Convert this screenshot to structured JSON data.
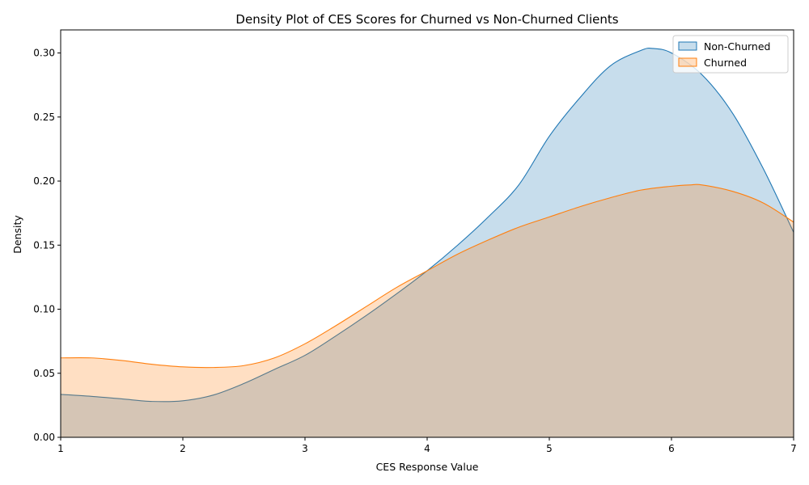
{
  "chart_data": {
    "type": "area",
    "title": "Density Plot of CES Scores for Churned vs Non-Churned Clients",
    "xlabel": "CES Response Value",
    "ylabel": "Density",
    "xlim": [
      1,
      7
    ],
    "ylim": [
      0,
      0.318
    ],
    "xticks": [
      1,
      2,
      3,
      4,
      5,
      6,
      7
    ],
    "xtick_labels": [
      "1",
      "2",
      "3",
      "4",
      "5",
      "6",
      "7"
    ],
    "yticks": [
      0,
      0.05,
      0.1,
      0.15,
      0.2,
      0.25,
      0.3
    ],
    "ytick_labels": [
      "0.00",
      "0.05",
      "0.10",
      "0.15",
      "0.20",
      "0.25",
      "0.30"
    ],
    "grid": false,
    "legend_position": "top-right",
    "series": [
      {
        "name": "Non-Churned",
        "line_color": "#1f77b4",
        "fill_color": "#1f77b4",
        "fill_opacity": 0.25,
        "x": [
          1.0,
          1.25,
          1.5,
          1.75,
          2.0,
          2.25,
          2.5,
          2.75,
          3.0,
          3.25,
          3.5,
          3.75,
          4.0,
          4.25,
          4.5,
          4.75,
          5.0,
          5.25,
          5.5,
          5.75,
          5.85,
          6.0,
          6.25,
          6.5,
          6.75,
          7.0
        ],
        "y": [
          0.0335,
          0.032,
          0.03,
          0.028,
          0.0285,
          0.033,
          0.042,
          0.053,
          0.064,
          0.079,
          0.095,
          0.112,
          0.13,
          0.15,
          0.172,
          0.197,
          0.235,
          0.265,
          0.29,
          0.302,
          0.3035,
          0.3,
          0.283,
          0.253,
          0.21,
          0.16
        ]
      },
      {
        "name": "Churned",
        "line_color": "#ff7f0e",
        "fill_color": "#ff7f0e",
        "fill_opacity": 0.25,
        "x": [
          1.0,
          1.25,
          1.5,
          1.75,
          2.0,
          2.25,
          2.5,
          2.75,
          3.0,
          3.25,
          3.5,
          3.75,
          4.0,
          4.25,
          4.5,
          4.75,
          5.0,
          5.25,
          5.5,
          5.75,
          6.0,
          6.15,
          6.25,
          6.5,
          6.75,
          7.0
        ],
        "y": [
          0.062,
          0.062,
          0.06,
          0.057,
          0.055,
          0.0545,
          0.056,
          0.062,
          0.073,
          0.087,
          0.102,
          0.117,
          0.13,
          0.143,
          0.154,
          0.164,
          0.172,
          0.18,
          0.187,
          0.193,
          0.196,
          0.197,
          0.197,
          0.192,
          0.183,
          0.168
        ]
      }
    ]
  }
}
